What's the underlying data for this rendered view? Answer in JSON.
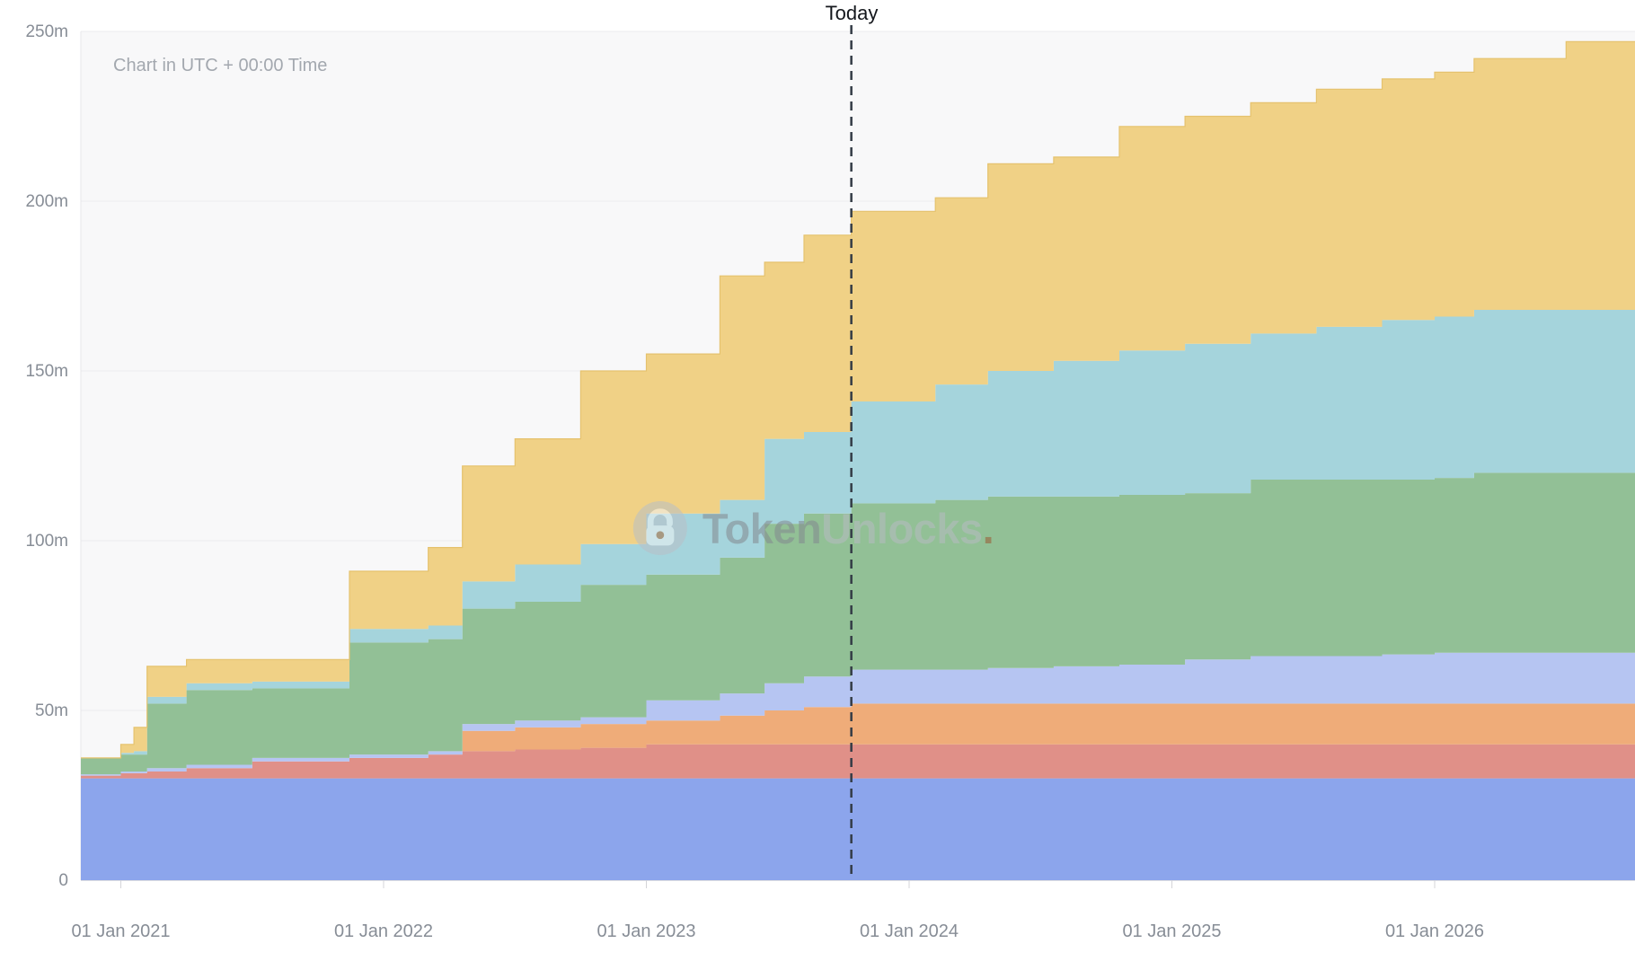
{
  "chart_data": {
    "type": "area",
    "variant": "stacked-step-area",
    "note": "Chart in UTC + 00:00 Time",
    "today": {
      "label": "Today",
      "x": 2023.78
    },
    "watermark": {
      "brand_bold": "Token",
      "brand_light": "Unlocks",
      "dot": "."
    },
    "x_axis": {
      "domain": [
        2020.84,
        2026.76
      ],
      "ticks": [
        {
          "x": 2021,
          "label": "01 Jan 2021"
        },
        {
          "x": 2022,
          "label": "01 Jan 2022"
        },
        {
          "x": 2023,
          "label": "01 Jan 2023"
        },
        {
          "x": 2024,
          "label": "01 Jan 2024"
        },
        {
          "x": 2025,
          "label": "01 Jan 2025"
        },
        {
          "x": 2026,
          "label": "01 Jan 2026"
        }
      ]
    },
    "y_axis": {
      "domain": [
        0,
        250
      ],
      "unit": "m",
      "ticks": [
        {
          "v": 0,
          "label": "0"
        },
        {
          "v": 50,
          "label": "50m"
        },
        {
          "v": 100,
          "label": "100m"
        },
        {
          "v": 150,
          "label": "150m"
        },
        {
          "v": 200,
          "label": "200m"
        },
        {
          "v": 250,
          "label": "250m"
        }
      ]
    },
    "stacking": "series values are cumulative stack tops, millions of tokens",
    "x": [
      2020.84,
      2021.0,
      2021.05,
      2021.1,
      2021.25,
      2021.5,
      2021.87,
      2022.17,
      2022.3,
      2022.5,
      2022.75,
      2023.0,
      2023.28,
      2023.45,
      2023.6,
      2023.78,
      2024.1,
      2024.3,
      2024.55,
      2024.8,
      2025.05,
      2025.3,
      2025.55,
      2025.8,
      2026.0,
      2026.15,
      2026.5,
      2026.76
    ],
    "series": [
      {
        "name": "allocation-blue",
        "color": "#8CA5EC",
        "cumulative": [
          30,
          30,
          30,
          30,
          30,
          30,
          30,
          30,
          30,
          30,
          30,
          30,
          30,
          30,
          30,
          30,
          30,
          30,
          30,
          30,
          30,
          30,
          30,
          30,
          30,
          30,
          30,
          30
        ]
      },
      {
        "name": "allocation-salmon",
        "color": "#E09088",
        "cumulative": [
          30.8,
          31.5,
          31.5,
          32,
          33,
          35,
          36,
          37,
          38,
          38.5,
          39,
          40,
          40,
          40,
          40,
          40,
          40,
          40,
          40,
          40,
          40,
          40,
          40,
          40,
          40,
          40,
          40,
          40
        ]
      },
      {
        "name": "allocation-orange",
        "color": "#EFAC79",
        "cumulative": [
          30.8,
          31.5,
          31.5,
          32,
          33,
          35,
          36,
          37,
          44,
          45,
          46,
          47,
          48.5,
          50,
          51,
          52,
          52,
          52,
          52,
          52,
          52,
          52,
          52,
          52,
          52,
          52,
          52,
          52
        ]
      },
      {
        "name": "allocation-periwinkle",
        "color": "#B6C5F2",
        "cumulative": [
          31.2,
          32,
          32,
          33,
          34,
          36,
          37,
          38,
          46,
          47,
          48,
          53,
          55,
          58,
          60,
          62,
          62,
          62.5,
          63,
          63.5,
          65,
          66,
          66,
          66.5,
          67,
          67,
          67,
          67
        ]
      },
      {
        "name": "allocation-green",
        "color": "#92C096",
        "cumulative": [
          36,
          37,
          37,
          52,
          56,
          56.5,
          70,
          71,
          80,
          82,
          87,
          90,
          95,
          105,
          108,
          111,
          112,
          113,
          113,
          113.5,
          114,
          118,
          118,
          118,
          118.5,
          120,
          120,
          120
        ]
      },
      {
        "name": "allocation-cyan",
        "color": "#A5D4DC",
        "cumulative": [
          36,
          37.5,
          38,
          54,
          58,
          58.5,
          74,
          75,
          88,
          93,
          99,
          108,
          112,
          130,
          132,
          141,
          146,
          150,
          153,
          156,
          158,
          161,
          163,
          165,
          166,
          168,
          168,
          168
        ]
      },
      {
        "name": "allocation-yellow",
        "color": "#F0D186",
        "cumulative": [
          36,
          40,
          45,
          63,
          65,
          65,
          91,
          98,
          122,
          130,
          150,
          155,
          178,
          182,
          190,
          197,
          201,
          211,
          213,
          222,
          225,
          229,
          233,
          236,
          238,
          242,
          247,
          247
        ]
      }
    ]
  },
  "style": {
    "plot_bg": "#f8f8f9",
    "grid": "#ebebee",
    "baseline": "#d2d2d7",
    "axis_line": "#e7e7ea",
    "tick_mark": "#d4d4d8",
    "axis_label": "#878d96",
    "today_line": "#333b45",
    "yellow_edge": "#e5c26e"
  }
}
